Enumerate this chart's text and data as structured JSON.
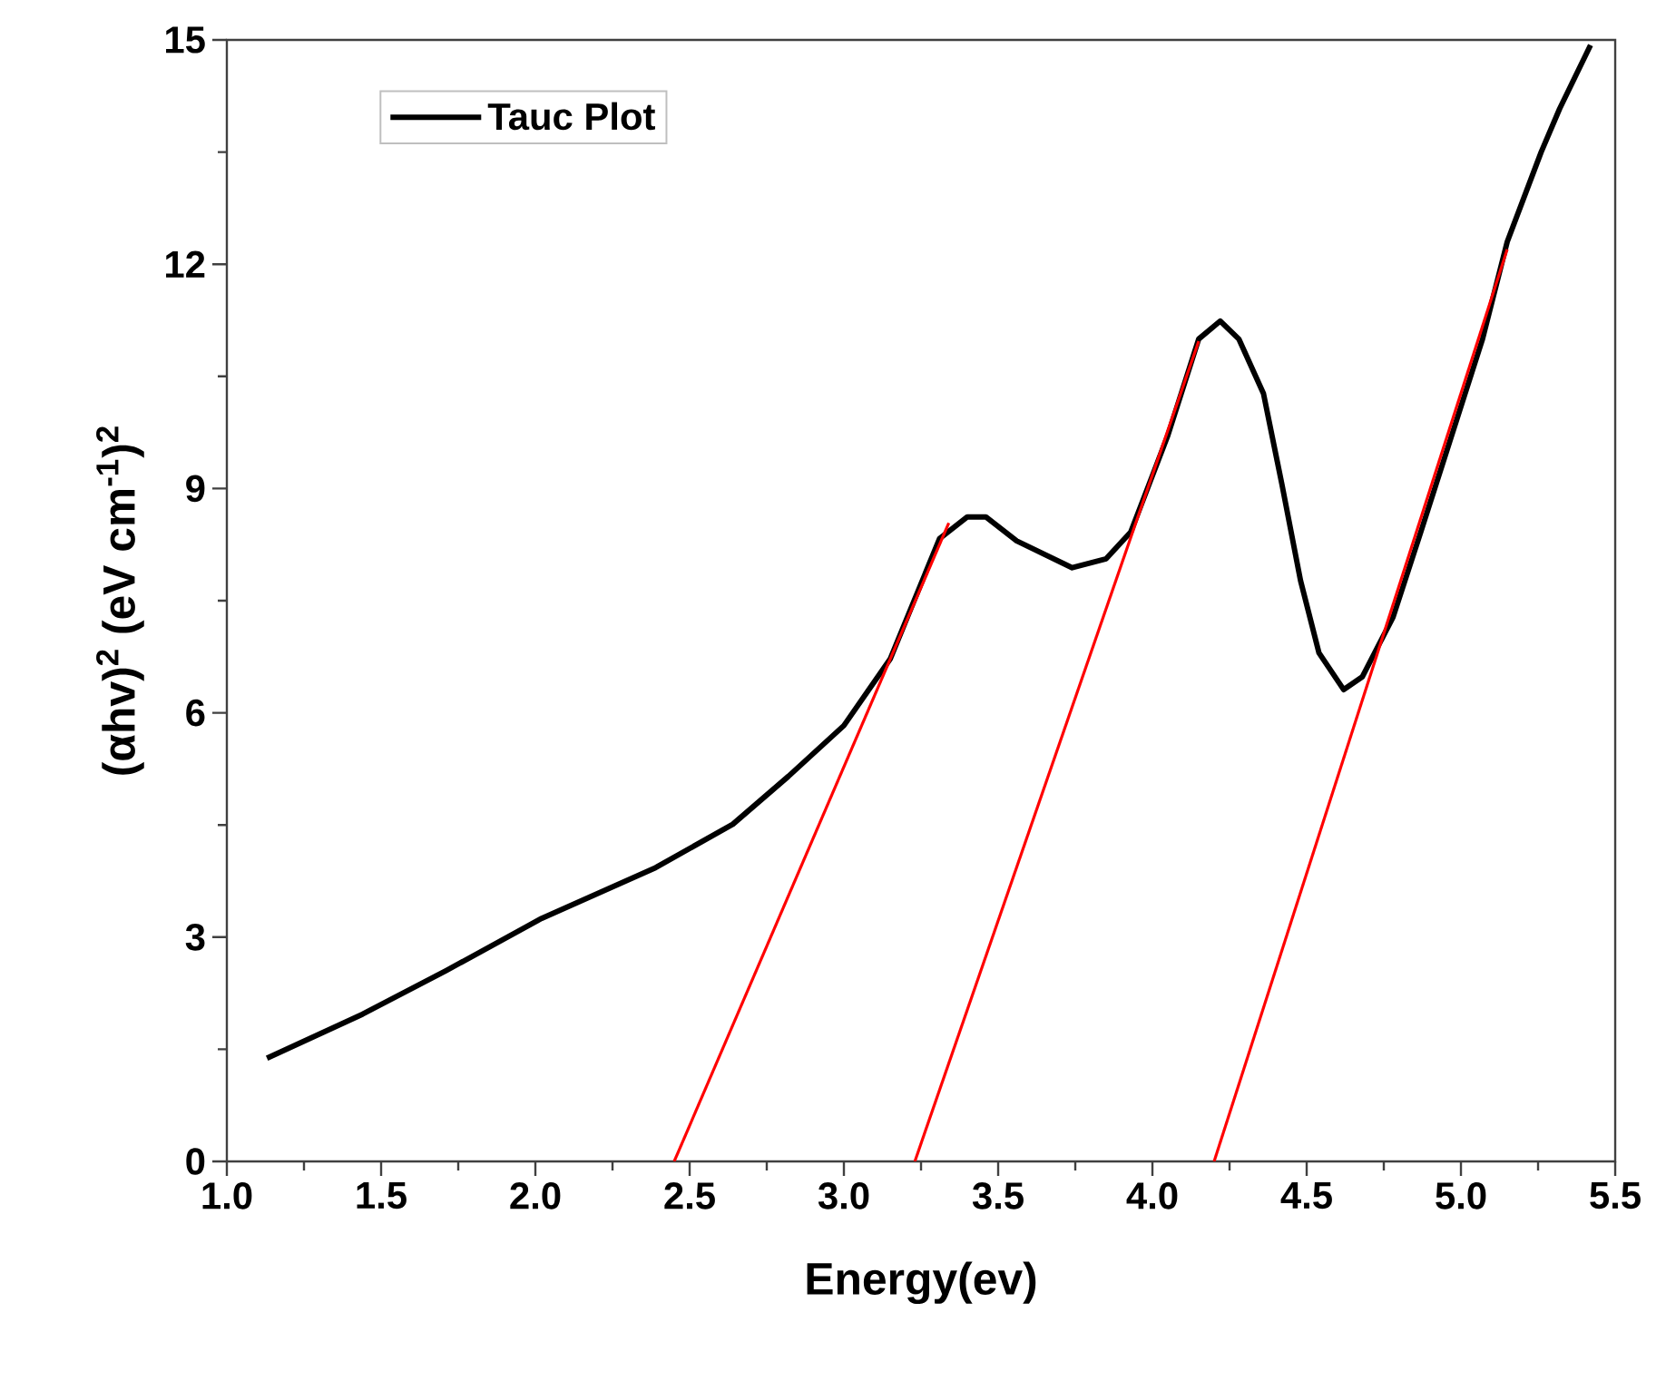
{
  "chart_data": {
    "type": "line",
    "xlabel": "Energy(ev)",
    "ylabel": "(αhv)$^{2}$ (eV cm$^{-1}$)$^{2}$",
    "xlim": [
      1.0,
      5.5
    ],
    "xticks": [
      {
        "value": 1,
        "label": "1.0"
      },
      1.5,
      {
        "value": 2,
        "label": "2.0"
      },
      2.5,
      {
        "value": 3,
        "label": "3.0"
      },
      3.5,
      {
        "value": 4,
        "label": "4.0"
      },
      4.5,
      {
        "value": 5,
        "label": "5.0"
      },
      5.5
    ],
    "ylim": [
      0,
      15
    ],
    "yticks": [
      0,
      3,
      6,
      9,
      12,
      15
    ],
    "legend": "top left",
    "marker": "none",
    "line_style": "solid",
    "grid": false,
    "series": [
      {
        "name": "Tauc Plot",
        "color": "#000000",
        "x": [
          1.13,
          1.44,
          1.71,
          2.02,
          2.39,
          2.64,
          2.82,
          3.0,
          3.15,
          3.31,
          3.4,
          3.46,
          3.56,
          3.74,
          3.85,
          3.93,
          4.05,
          4.15,
          4.22,
          4.28,
          4.36,
          4.42,
          4.48,
          4.54,
          4.62,
          4.68,
          4.78,
          4.87,
          4.97,
          5.07,
          5.15,
          5.26,
          5.32,
          5.42
        ],
        "values": [
          1.38,
          1.97,
          2.55,
          3.25,
          3.93,
          4.51,
          5.15,
          5.83,
          6.72,
          8.33,
          8.62,
          8.62,
          8.3,
          7.94,
          8.06,
          8.42,
          9.71,
          11.0,
          11.24,
          11.0,
          10.27,
          9.05,
          7.77,
          6.8,
          6.31,
          6.48,
          7.28,
          8.42,
          9.71,
          11.0,
          12.3,
          13.5,
          14.08,
          14.93
        ]
      },
      {
        "type": "line",
        "color": "#ff0000",
        "x": [
          2.45,
          3.34
        ],
        "values": [
          0,
          8.54
        ]
      },
      {
        "type": "line",
        "color": "#ff0000",
        "x": [
          3.23,
          4.15
        ],
        "values": [
          0,
          10.97
        ]
      },
      {
        "type": "line",
        "color": "#ff0000",
        "x": [
          4.2,
          5.15
        ],
        "values": [
          0,
          12.2
        ]
      }
    ]
  }
}
